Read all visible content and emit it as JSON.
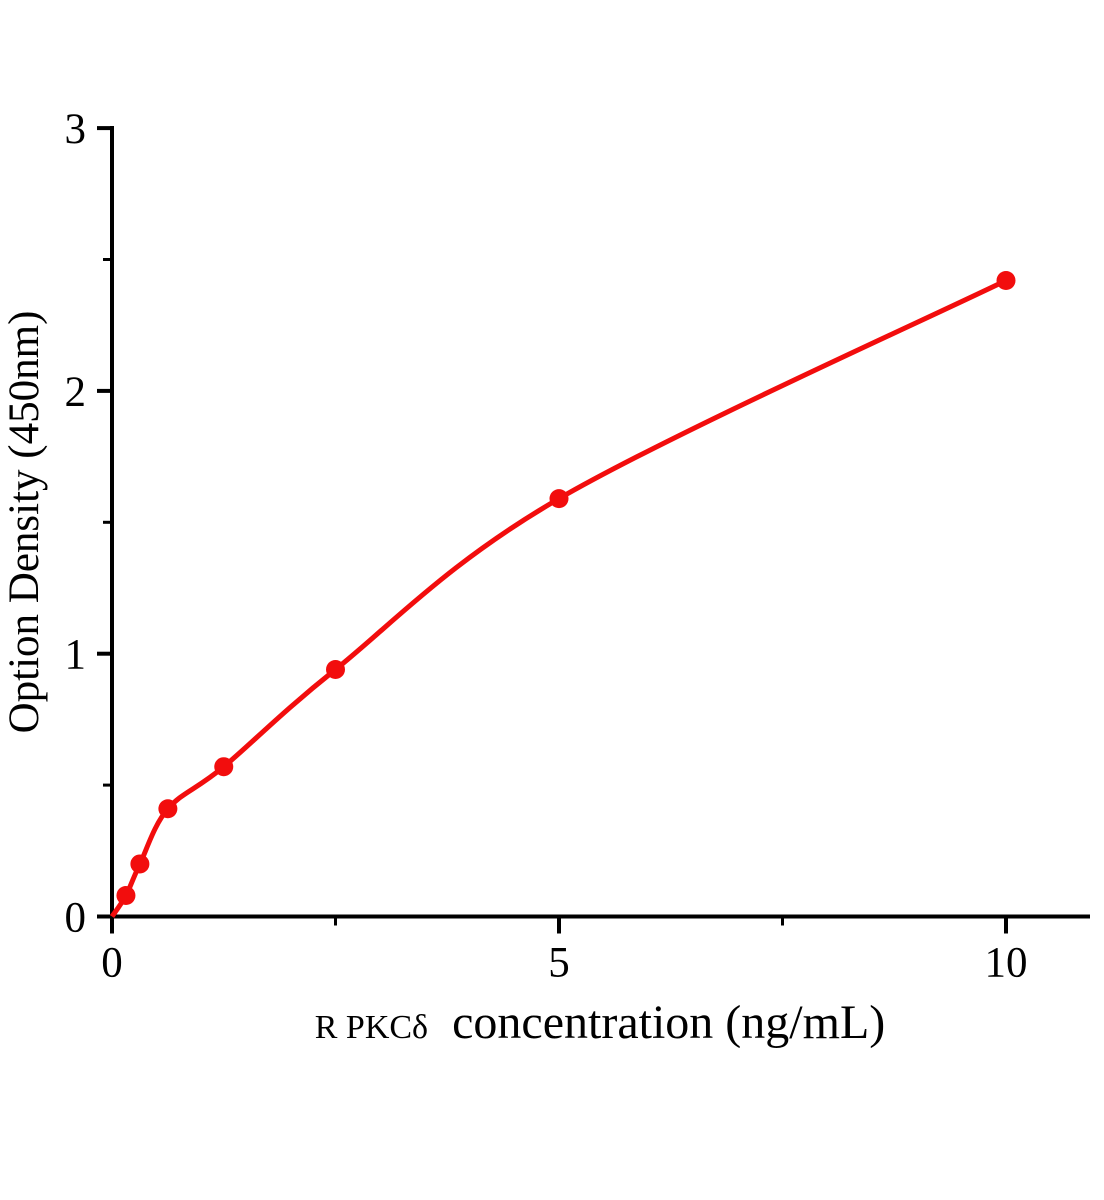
{
  "figure": {
    "background": "#ffffff"
  },
  "chart_data": {
    "type": "scatter",
    "title": "",
    "xlabel_parts": {
      "protein": "R PKCδ",
      "rest": "concentration (ng/mL)"
    },
    "ylabel": "Option Density (450nm)",
    "points": [
      {
        "x": 0.156,
        "y": 0.08
      },
      {
        "x": 0.312,
        "y": 0.2
      },
      {
        "x": 0.625,
        "y": 0.41
      },
      {
        "x": 1.25,
        "y": 0.57
      },
      {
        "x": 2.5,
        "y": 0.94
      },
      {
        "x": 5,
        "y": 1.59
      },
      {
        "x": 10,
        "y": 2.42
      }
    ],
    "curve": {
      "through_origin": true,
      "style": "smooth-fit"
    },
    "x_axis": {
      "range": [
        0,
        10.95
      ],
      "major_ticks": [
        {
          "value": 0,
          "label": "0"
        },
        {
          "value": 5,
          "label": "5"
        },
        {
          "value": 10,
          "label": "10"
        }
      ],
      "minor_ticks": [
        2.5,
        7.5
      ]
    },
    "y_axis": {
      "range": [
        0,
        3
      ],
      "major_ticks": [
        {
          "value": 0,
          "label": "0"
        },
        {
          "value": 1,
          "label": "1"
        },
        {
          "value": 2,
          "label": "2"
        },
        {
          "value": 3,
          "label": "3"
        }
      ],
      "minor_ticks": [
        0.5,
        1.5,
        2.5
      ]
    },
    "grid": "off",
    "legend": "none",
    "colors": {
      "series": "#f20d0d",
      "axis": "#000000",
      "text": "#000000"
    }
  }
}
